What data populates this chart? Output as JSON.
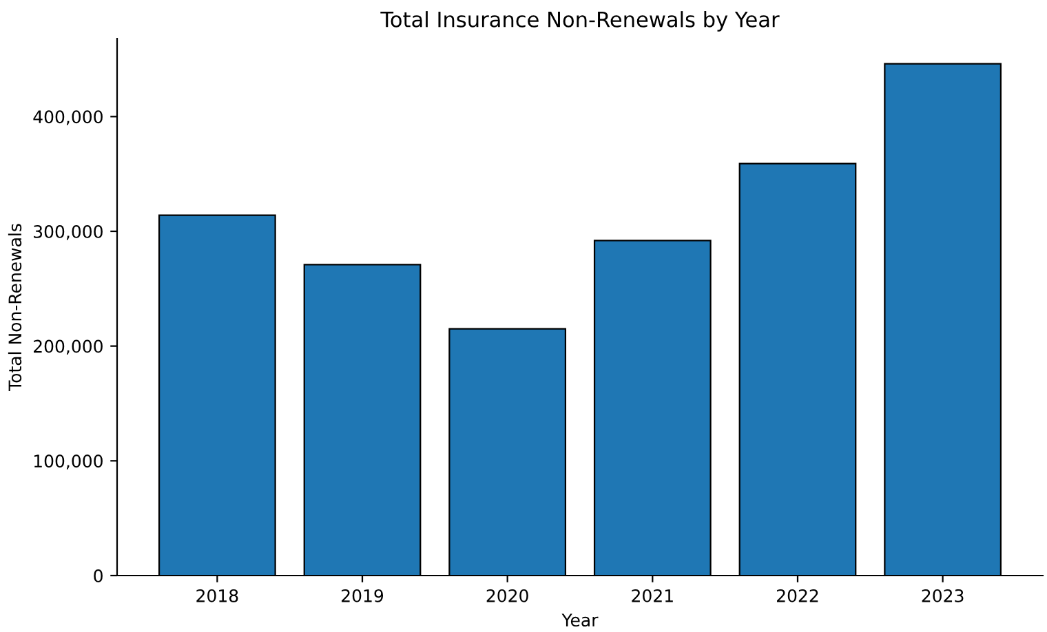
{
  "chart_data": {
    "type": "bar",
    "title": "Total Insurance Non-Renewals by Year",
    "xlabel": "Year",
    "ylabel": "Total Non-Renewals",
    "categories": [
      "2018",
      "2019",
      "2020",
      "2021",
      "2022",
      "2023"
    ],
    "values": [
      314000,
      271000,
      215000,
      292000,
      359000,
      446000
    ],
    "color": "#1f77b4",
    "ylim": [
      0,
      468000
    ],
    "yticks": [
      {
        "value": 0,
        "label": "0"
      },
      {
        "value": 100000,
        "label": "100,000"
      },
      {
        "value": 200000,
        "label": "200,000"
      },
      {
        "value": 300000,
        "label": "300,000"
      },
      {
        "value": 400000,
        "label": "400,000"
      }
    ],
    "grid": false,
    "legend": false
  }
}
